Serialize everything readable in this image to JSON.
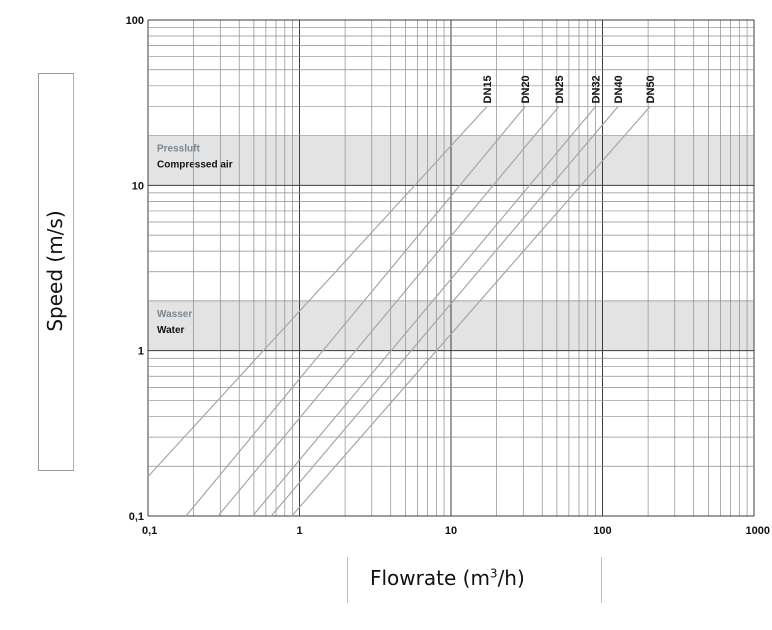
{
  "chart_data": {
    "type": "line",
    "xscale": "log",
    "yscale": "log",
    "xlim": [
      0.1,
      1000
    ],
    "ylim": [
      0.1,
      100
    ],
    "xticks": [
      "0,1",
      "1",
      "10",
      "100",
      "1000"
    ],
    "yticks": [
      "100",
      "10",
      "1",
      "0,1"
    ],
    "ylabel": "Speed (m/s)",
    "xlabel": {
      "prefix": "Flowrate (m",
      "sup": "3",
      "suffix": "/h)"
    },
    "bands": [
      {
        "label_de": "Pressluft",
        "label_en": "Compressed air",
        "range": [
          10,
          20
        ]
      },
      {
        "label_de": "Wasser",
        "label_en": "Water",
        "range": [
          1,
          2
        ]
      }
    ],
    "series": [
      {
        "name": "DN15",
        "x": [
          0.1,
          17.3
        ],
        "y": [
          0.173,
          30
        ]
      },
      {
        "name": "DN20",
        "x": [
          0.178,
          30.9
        ],
        "y": [
          0.1,
          30
        ]
      },
      {
        "name": "DN25",
        "x": [
          0.29,
          51.5
        ],
        "y": [
          0.1,
          30
        ]
      },
      {
        "name": "DN32",
        "x": [
          0.49,
          90.1
        ],
        "y": [
          0.1,
          30
        ]
      },
      {
        "name": "DN40",
        "x": [
          0.65,
          126.7
        ],
        "y": [
          0.1,
          30
        ]
      },
      {
        "name": "DN50",
        "x": [
          0.89,
          206
        ],
        "y": [
          0.1,
          30
        ]
      }
    ],
    "grid": true,
    "colors": {
      "band": "#e3e3e3",
      "grid": "#8c8c8c",
      "major": "#3c3c3c",
      "line": "#a6a6a6",
      "band_de": "#7a8791"
    }
  }
}
